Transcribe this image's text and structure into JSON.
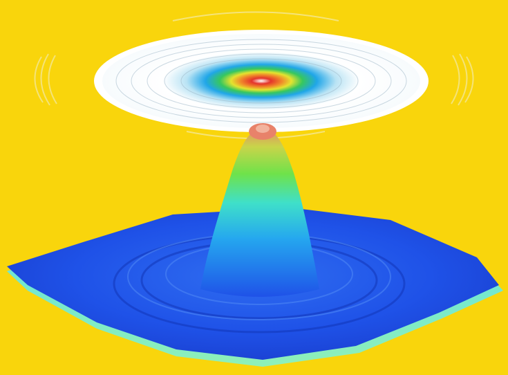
{
  "scene": {
    "subject": "3d-surface-plot-with-contour-ring",
    "colors": {
      "background": "#f9d50c",
      "surface_base": "#1f52e8",
      "surface_edge": "#59e0e6",
      "peak_top": "#e8826a",
      "contour_center": "#e4332b",
      "contour_ring_white": "#ffffff"
    }
  }
}
